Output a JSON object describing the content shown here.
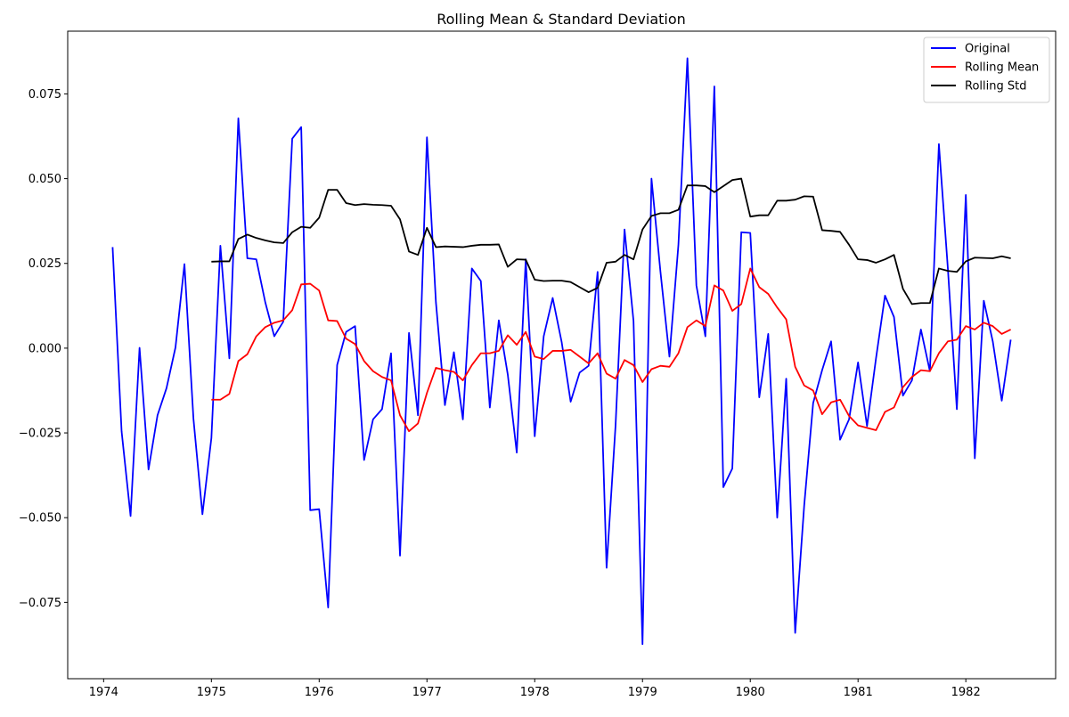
{
  "chart_data": {
    "type": "line",
    "title": "Rolling Mean & Standard Deviation",
    "xlabel": "",
    "ylabel": "",
    "x_tick_labels": [
      "1974",
      "1975",
      "1976",
      "1977",
      "1978",
      "1979",
      "1980",
      "1981",
      "1982"
    ],
    "y_tick_labels": [
      "−0.075",
      "−0.050",
      "−0.025",
      "0.000",
      "0.025",
      "0.050",
      "0.075"
    ],
    "xlim": [
      "1973-09",
      "1982-11"
    ],
    "ylim": [
      -0.0975,
      0.0935
    ],
    "grid": false,
    "legend_position": "top-right",
    "series": [
      {
        "name": "Original",
        "color": "#0000ff",
        "x": [
          "1974-02",
          "1974-03",
          "1974-04",
          "1974-05",
          "1974-06",
          "1974-07",
          "1974-08",
          "1974-09",
          "1974-10",
          "1974-11",
          "1974-12",
          "1975-01",
          "1975-02",
          "1975-03",
          "1975-04",
          "1975-05",
          "1975-06",
          "1975-07",
          "1975-08",
          "1975-09",
          "1975-10",
          "1975-11",
          "1975-12",
          "1976-01",
          "1976-02",
          "1976-03",
          "1976-04",
          "1976-05",
          "1976-06",
          "1976-07",
          "1976-08",
          "1976-09",
          "1976-10",
          "1976-11",
          "1976-12",
          "1977-01",
          "1977-02",
          "1977-03",
          "1977-04",
          "1977-05",
          "1977-06",
          "1977-07",
          "1977-08",
          "1977-09",
          "1977-10",
          "1977-11",
          "1977-12",
          "1978-01",
          "1978-02",
          "1978-03",
          "1978-04",
          "1978-05",
          "1978-06",
          "1978-07",
          "1978-08",
          "1978-09",
          "1978-10",
          "1978-11",
          "1978-12",
          "1979-01",
          "1979-02",
          "1979-03",
          "1979-04",
          "1979-05",
          "1979-06",
          "1979-07",
          "1979-08",
          "1979-09",
          "1979-10",
          "1979-11",
          "1979-12",
          "1980-01",
          "1980-02",
          "1980-03",
          "1980-04",
          "1980-05",
          "1980-06",
          "1980-07",
          "1980-08",
          "1980-09",
          "1980-10",
          "1980-11",
          "1980-12",
          "1981-01",
          "1981-02",
          "1981-03",
          "1981-04",
          "1981-05",
          "1981-06",
          "1981-07",
          "1981-08",
          "1981-09",
          "1981-10",
          "1981-11",
          "1981-12",
          "1982-01",
          "1982-02",
          "1982-03",
          "1982-04",
          "1982-05",
          "1982-06"
        ],
        "values": [
          0.0298,
          -0.0245,
          -0.0495,
          0.0001,
          -0.0358,
          -0.0198,
          -0.0118,
          0.0002,
          0.0248,
          -0.0208,
          -0.049,
          -0.0265,
          0.0302,
          -0.003,
          0.0678,
          0.0265,
          0.0262,
          0.0135,
          0.0035,
          0.0078,
          0.0618,
          0.0652,
          -0.0478,
          -0.0475,
          -0.0765,
          -0.005,
          0.0048,
          0.0065,
          -0.033,
          -0.021,
          -0.018,
          -0.0015,
          -0.0612,
          0.0045,
          -0.0198,
          0.0622,
          0.0135,
          -0.0168,
          -0.0012,
          -0.021,
          0.0235,
          0.0198,
          -0.0175,
          0.0082,
          -0.0078,
          -0.0308,
          0.0262,
          -0.026,
          0.0035,
          0.0148,
          0.0018,
          -0.0158,
          -0.0072,
          -0.0052,
          0.0225,
          -0.0648,
          -0.0228,
          0.035,
          0.008,
          -0.0873,
          0.05,
          0.0225,
          -0.0025,
          0.0305,
          0.0855,
          0.0185,
          0.0035,
          0.0772,
          -0.041,
          -0.0355,
          0.0342,
          0.034,
          -0.0145,
          0.0042,
          -0.05,
          -0.009,
          -0.084,
          -0.0465,
          -0.0162,
          -0.0065,
          0.002,
          -0.027,
          -0.021,
          -0.0042,
          -0.023,
          -0.003,
          0.0155,
          0.0092,
          -0.014,
          -0.0095,
          0.0055,
          -0.0068,
          0.0602,
          0.0235,
          -0.018,
          0.0452,
          -0.0325,
          0.014,
          0.002,
          -0.0155,
          0.0025
        ]
      },
      {
        "name": "Rolling Mean",
        "color": "#ff0000",
        "x": [
          "1975-01",
          "1975-02",
          "1975-03",
          "1975-04",
          "1975-05",
          "1975-06",
          "1975-07",
          "1975-08",
          "1975-09",
          "1975-10",
          "1975-11",
          "1975-12",
          "1976-01",
          "1976-02",
          "1976-03",
          "1976-04",
          "1976-05",
          "1976-06",
          "1976-07",
          "1976-08",
          "1976-09",
          "1976-10",
          "1976-11",
          "1976-12",
          "1977-01",
          "1977-02",
          "1977-03",
          "1977-04",
          "1977-05",
          "1977-06",
          "1977-07",
          "1977-08",
          "1977-09",
          "1977-10",
          "1977-11",
          "1977-12",
          "1978-01",
          "1978-02",
          "1978-03",
          "1978-04",
          "1978-05",
          "1978-06",
          "1978-07",
          "1978-08",
          "1978-09",
          "1978-10",
          "1978-11",
          "1978-12",
          "1979-01",
          "1979-02",
          "1979-03",
          "1979-04",
          "1979-05",
          "1979-06",
          "1979-07",
          "1979-08",
          "1979-09",
          "1979-10",
          "1979-11",
          "1979-12",
          "1980-01",
          "1980-02",
          "1980-03",
          "1980-04",
          "1980-05",
          "1980-06",
          "1980-07",
          "1980-08",
          "1980-09",
          "1980-10",
          "1980-11",
          "1980-12",
          "1981-01",
          "1981-02",
          "1981-03",
          "1981-04",
          "1981-05",
          "1981-06",
          "1981-07",
          "1981-08",
          "1981-09",
          "1981-10",
          "1981-11",
          "1981-12",
          "1982-01",
          "1982-02",
          "1982-03",
          "1982-04",
          "1982-05",
          "1982-06"
        ],
        "values": [
          -0.0152,
          -0.0152,
          -0.0135,
          -0.0038,
          -0.0018,
          0.0035,
          0.0062,
          0.0075,
          0.0082,
          0.0112,
          0.0188,
          0.019,
          0.017,
          0.0082,
          0.008,
          0.0028,
          0.0012,
          -0.0038,
          -0.0068,
          -0.0085,
          -0.0095,
          -0.0198,
          -0.0245,
          -0.0222,
          -0.0132,
          -0.0058,
          -0.0065,
          -0.007,
          -0.0095,
          -0.005,
          -0.0015,
          -0.0015,
          -0.0008,
          0.0038,
          0.001,
          0.0048,
          -0.0025,
          -0.0032,
          -0.0008,
          -0.0008,
          -0.0005,
          -0.0025,
          -0.0045,
          -0.0015,
          -0.0075,
          -0.009,
          -0.0035,
          -0.005,
          -0.01,
          -0.0062,
          -0.0052,
          -0.0055,
          -0.0015,
          0.0062,
          0.0082,
          0.0065,
          0.0185,
          0.017,
          0.011,
          0.013,
          0.0235,
          0.018,
          0.016,
          0.012,
          0.0085,
          -0.0055,
          -0.011,
          -0.0125,
          -0.0195,
          -0.016,
          -0.0152,
          -0.02,
          -0.0228,
          -0.0235,
          -0.0242,
          -0.0188,
          -0.0175,
          -0.0115,
          -0.0085,
          -0.0065,
          -0.0068,
          -0.0015,
          0.002,
          0.0025,
          0.0065,
          0.0055,
          0.0075,
          0.0065,
          0.0042,
          0.0055
        ]
      },
      {
        "name": "Rolling Std",
        "color": "#000000",
        "x": [
          "1975-01",
          "1975-02",
          "1975-03",
          "1975-04",
          "1975-05",
          "1975-06",
          "1975-07",
          "1975-08",
          "1975-09",
          "1975-10",
          "1975-11",
          "1975-12",
          "1976-01",
          "1976-02",
          "1976-03",
          "1976-04",
          "1976-05",
          "1976-06",
          "1976-07",
          "1976-08",
          "1976-09",
          "1976-10",
          "1976-11",
          "1976-12",
          "1977-01",
          "1977-02",
          "1977-03",
          "1977-04",
          "1977-05",
          "1977-06",
          "1977-07",
          "1977-08",
          "1977-09",
          "1977-10",
          "1977-11",
          "1977-12",
          "1978-01",
          "1978-02",
          "1978-03",
          "1978-04",
          "1978-05",
          "1978-06",
          "1978-07",
          "1978-08",
          "1978-09",
          "1978-10",
          "1978-11",
          "1978-12",
          "1979-01",
          "1979-02",
          "1979-03",
          "1979-04",
          "1979-05",
          "1979-06",
          "1979-07",
          "1979-08",
          "1979-09",
          "1979-10",
          "1979-11",
          "1979-12",
          "1980-01",
          "1980-02",
          "1980-03",
          "1980-04",
          "1980-05",
          "1980-06",
          "1980-07",
          "1980-08",
          "1980-09",
          "1980-10",
          "1980-11",
          "1980-12",
          "1981-01",
          "1981-02",
          "1981-03",
          "1981-04",
          "1981-05",
          "1981-06",
          "1981-07",
          "1981-08",
          "1981-09",
          "1981-10",
          "1981-11",
          "1981-12",
          "1982-01",
          "1982-02",
          "1982-03",
          "1982-04",
          "1982-05",
          "1982-06"
        ],
        "values": [
          0.0255,
          0.0256,
          0.0256,
          0.0322,
          0.0335,
          0.0325,
          0.0318,
          0.0312,
          0.031,
          0.0342,
          0.0358,
          0.0355,
          0.0385,
          0.0467,
          0.0467,
          0.0428,
          0.0422,
          0.0425,
          0.0423,
          0.0422,
          0.042,
          0.038,
          0.0285,
          0.0275,
          0.0355,
          0.0298,
          0.03,
          0.0299,
          0.0298,
          0.0302,
          0.0305,
          0.0305,
          0.0306,
          0.024,
          0.0262,
          0.0261,
          0.0202,
          0.0198,
          0.0199,
          0.0199,
          0.0195,
          0.018,
          0.0165,
          0.0178,
          0.0252,
          0.0255,
          0.0275,
          0.0262,
          0.035,
          0.039,
          0.0398,
          0.0398,
          0.0408,
          0.048,
          0.048,
          0.0478,
          0.046,
          0.0478,
          0.0496,
          0.05,
          0.0388,
          0.0392,
          0.0392,
          0.0435,
          0.0435,
          0.0438,
          0.0448,
          0.0447,
          0.0348,
          0.0346,
          0.0343,
          0.0305,
          0.0262,
          0.026,
          0.0252,
          0.0262,
          0.0275,
          0.0175,
          0.013,
          0.0133,
          0.0133,
          0.0235,
          0.0228,
          0.0225,
          0.0256,
          0.0267,
          0.0266,
          0.0265,
          0.0271,
          0.0265
        ]
      }
    ]
  }
}
